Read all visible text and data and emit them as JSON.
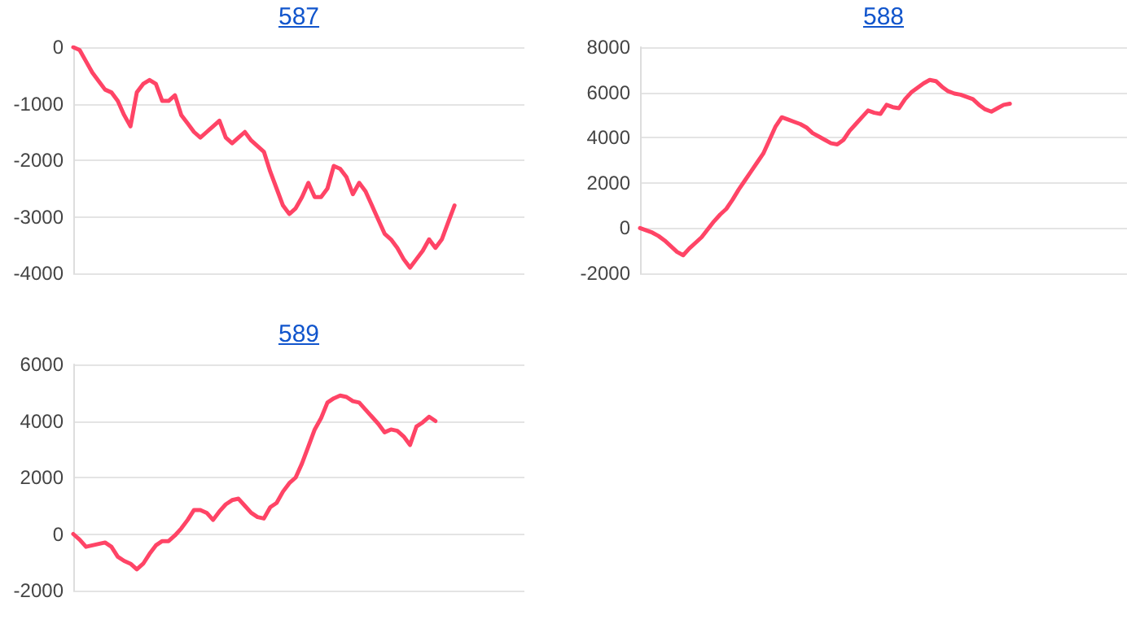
{
  "chart_data": [
    {
      "type": "line",
      "title": "587",
      "categories": [
        null,
        null,
        null,
        null,
        null,
        null,
        null,
        null,
        null,
        null,
        null,
        null,
        null,
        null,
        null,
        null,
        null,
        null,
        null,
        null,
        null,
        null,
        null,
        null,
        null,
        null,
        null,
        null,
        null,
        null,
        null,
        null,
        null,
        null,
        null,
        null,
        null,
        null,
        null,
        null,
        null,
        null,
        null,
        null,
        null,
        null,
        null,
        null,
        null,
        null,
        null,
        null,
        null,
        null,
        null,
        null,
        null,
        null,
        null,
        null,
        null,
        null,
        null,
        null,
        null,
        null,
        null,
        null,
        null,
        null,
        null,
        null
      ],
      "series": [
        {
          "color": "#ff4466",
          "values": [
            0,
            -50,
            -250,
            -450,
            -600,
            -750,
            -800,
            -950,
            -1200,
            -1400,
            -800,
            -650,
            -580,
            -650,
            -950,
            -950,
            -850,
            -1200,
            -1350,
            -1500,
            -1600,
            -1500,
            -1400,
            -1300,
            -1600,
            -1700,
            -1600,
            -1500,
            -1650,
            -1750,
            -1850,
            -2200,
            -2500,
            -2800,
            -2950,
            -2850,
            -2650,
            -2400,
            -2650,
            -2650,
            -2500,
            -2100,
            -2150,
            -2300,
            -2600,
            -2400,
            -2550,
            -2800,
            -3050,
            -3300,
            -3400,
            -3550,
            -3750,
            -3900,
            -3750,
            -3600,
            -3400,
            -3550,
            -3400,
            -3100,
            -2800,
            null,
            null,
            null,
            null,
            null,
            null,
            null,
            null,
            null,
            null,
            null
          ]
        }
      ],
      "ylim": [
        -4000,
        0
      ],
      "yticks": [
        -4000,
        -3000,
        -2000,
        -1000,
        0
      ],
      "grid": "y",
      "tick_labels": "y",
      "line_style": "solid"
    },
    {
      "type": "line",
      "title": "588",
      "categories": [
        null,
        null,
        null,
        null,
        null,
        null,
        null,
        null,
        null,
        null,
        null,
        null,
        null,
        null,
        null,
        null,
        null,
        null,
        null,
        null,
        null,
        null,
        null,
        null,
        null,
        null,
        null,
        null,
        null,
        null,
        null,
        null,
        null,
        null,
        null,
        null,
        null,
        null,
        null,
        null,
        null,
        null,
        null,
        null,
        null,
        null,
        null,
        null,
        null,
        null,
        null,
        null,
        null,
        null,
        null,
        null,
        null,
        null,
        null,
        null,
        null,
        null,
        null,
        null,
        null,
        null,
        null,
        null,
        null,
        null,
        null,
        null,
        null,
        null,
        null,
        null,
        null,
        null,
        null,
        null
      ],
      "series": [
        {
          "color": "#ff4466",
          "values": [
            0,
            -100,
            -200,
            -350,
            -550,
            -800,
            -1050,
            -1200,
            -900,
            -650,
            -400,
            -50,
            300,
            600,
            850,
            1250,
            1700,
            2100,
            2500,
            2900,
            3300,
            3900,
            4500,
            4900,
            4800,
            4700,
            4600,
            4450,
            4200,
            4050,
            3900,
            3750,
            3700,
            3900,
            4300,
            4600,
            4900,
            5200,
            5100,
            5050,
            5450,
            5350,
            5300,
            5700,
            6000,
            6200,
            6400,
            6550,
            6500,
            6250,
            6050,
            5950,
            5900,
            5800,
            5700,
            5450,
            5250,
            5150,
            5300,
            5450,
            5500,
            null,
            null,
            null,
            null,
            null,
            null,
            null,
            null,
            null,
            null,
            null,
            null,
            null,
            null,
            null,
            null,
            null,
            null,
            null
          ]
        }
      ],
      "ylim": [
        -2000,
        8000
      ],
      "yticks": [
        -2000,
        0,
        2000,
        4000,
        6000,
        8000
      ],
      "grid": "y",
      "tick_labels": "y",
      "line_style": "solid"
    },
    {
      "type": "line",
      "title": "589",
      "categories": [
        null,
        null,
        null,
        null,
        null,
        null,
        null,
        null,
        null,
        null,
        null,
        null,
        null,
        null,
        null,
        null,
        null,
        null,
        null,
        null,
        null,
        null,
        null,
        null,
        null,
        null,
        null,
        null,
        null,
        null,
        null,
        null,
        null,
        null,
        null,
        null,
        null,
        null,
        null,
        null,
        null,
        null,
        null,
        null,
        null,
        null,
        null,
        null,
        null,
        null,
        null,
        null,
        null,
        null,
        null,
        null,
        null,
        null,
        null,
        null,
        null,
        null,
        null,
        null,
        null,
        null,
        null,
        null,
        null,
        null,
        null,
        null
      ],
      "series": [
        {
          "color": "#ff4466",
          "values": [
            0,
            -200,
            -450,
            -400,
            -350,
            -300,
            -450,
            -800,
            -950,
            -1050,
            -1250,
            -1050,
            -700,
            -400,
            -250,
            -250,
            -50,
            200,
            500,
            850,
            850,
            750,
            500,
            800,
            1050,
            1200,
            1250,
            1000,
            750,
            600,
            550,
            950,
            1100,
            1500,
            1800,
            2000,
            2500,
            3100,
            3700,
            4100,
            4650,
            4800,
            4900,
            4850,
            4700,
            4650,
            4400,
            4150,
            3900,
            3600,
            3700,
            3650,
            3450,
            3150,
            3800,
            3950,
            4150,
            4000,
            null,
            null,
            null,
            null,
            null,
            null,
            null,
            null,
            null,
            null,
            null,
            null,
            null,
            null
          ]
        }
      ],
      "ylim": [
        -2000,
        6000
      ],
      "yticks": [
        -2000,
        0,
        2000,
        4000,
        6000
      ],
      "grid": "y",
      "tick_labels": "y",
      "line_style": "solid"
    }
  ]
}
